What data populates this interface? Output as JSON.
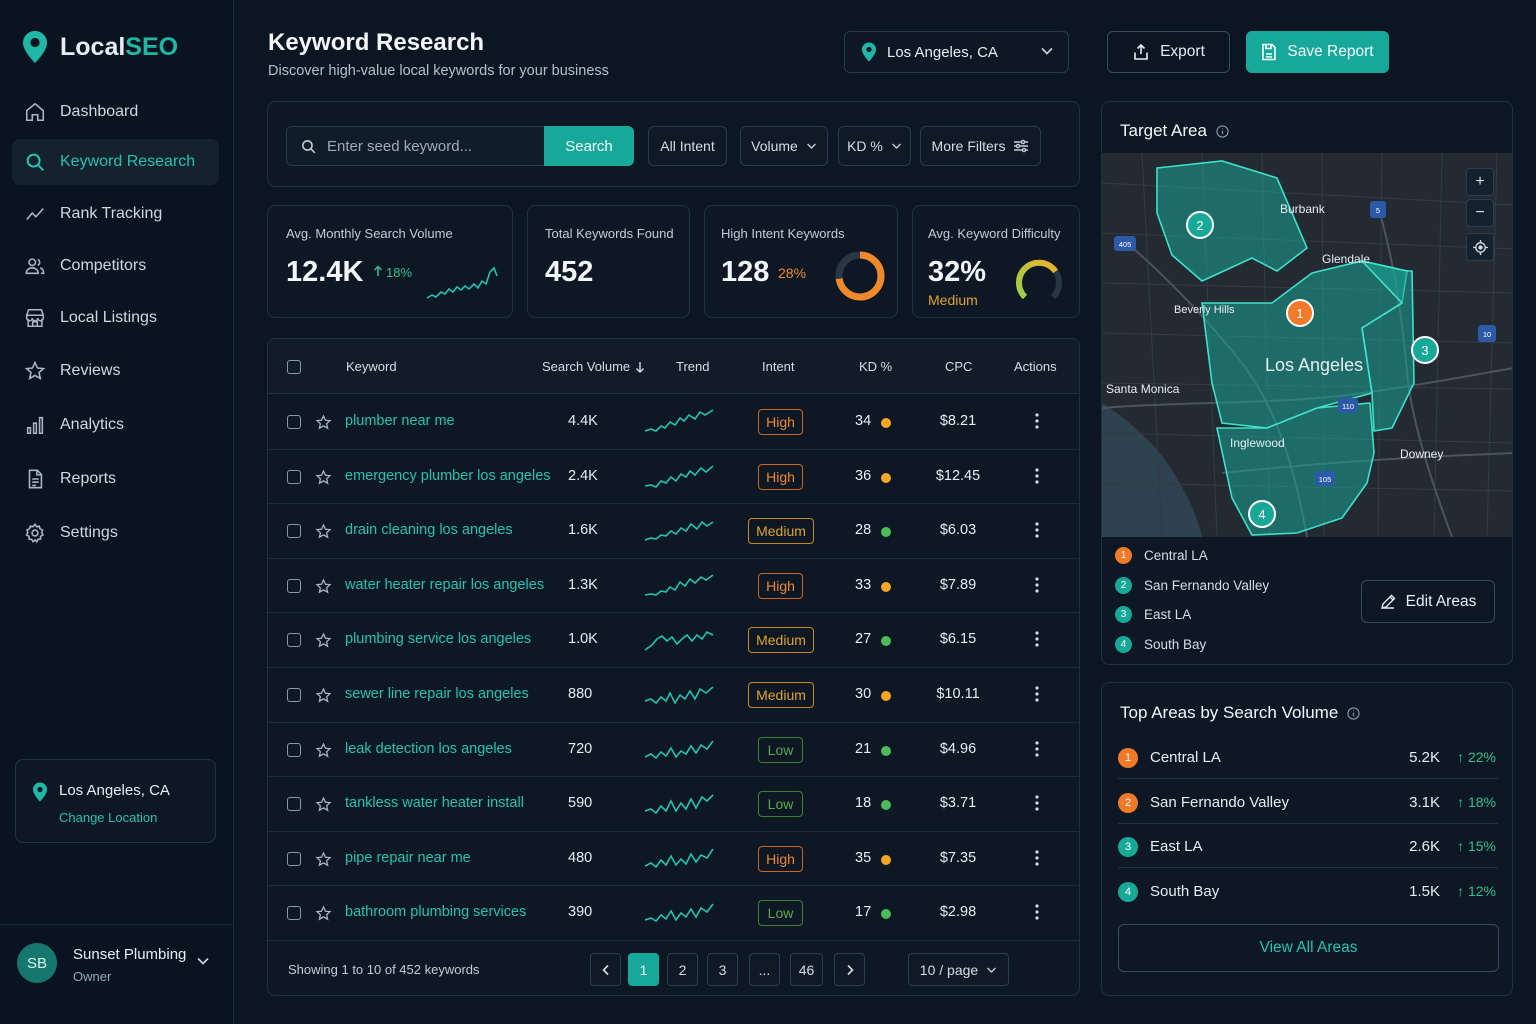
{
  "app": {
    "logo_local": "Local",
    "logo_seo": "SEO"
  },
  "sidebar": {
    "items": [
      {
        "label": "Dashboard"
      },
      {
        "label": "Keyword Research"
      },
      {
        "label": "Rank Tracking"
      },
      {
        "label": "Competitors"
      },
      {
        "label": "Local Listings"
      },
      {
        "label": "Reviews"
      },
      {
        "label": "Analytics"
      },
      {
        "label": "Reports"
      },
      {
        "label": "Settings"
      }
    ],
    "location": {
      "title": "Los Angeles, CA",
      "link": "Change Location"
    },
    "user": {
      "initials": "SB",
      "name": "Sunset Plumbing",
      "role": "Owner"
    }
  },
  "header": {
    "title": "Keyword Research",
    "subtitle": "Discover high-value local keywords for your business",
    "location": "Los Angeles, CA",
    "export": "Export",
    "save": "Save Report"
  },
  "search": {
    "placeholder": "Enter seed keyword...",
    "button": "Search",
    "filters": [
      "All Intent",
      "Volume",
      "KD %",
      "More Filters"
    ]
  },
  "kpis": {
    "volume": {
      "label": "Avg. Monthly Search Volume",
      "value": "12.4K",
      "change": "18%"
    },
    "total": {
      "label": "Total Keywords Found",
      "value": "452"
    },
    "intent": {
      "label": "High Intent Keywords",
      "value": "128",
      "pct": "28%",
      "fraction": 0.28
    },
    "difficulty": {
      "label": "Avg. Keyword Difficulty",
      "value": "32%",
      "level": "Medium",
      "fraction": 0.32
    }
  },
  "table": {
    "headers": {
      "keyword": "Keyword",
      "volume": "Search Volume",
      "trend": "Trend",
      "intent": "Intent",
      "kd": "KD %",
      "cpc": "CPC",
      "actions": "Actions"
    },
    "rows": [
      {
        "keyword": "plumber near me",
        "volume": "4.4K",
        "intent": "High",
        "kd": "34",
        "cpc": "$8.21"
      },
      {
        "keyword": "emergency plumber los angeles",
        "volume": "2.4K",
        "intent": "High",
        "kd": "36",
        "cpc": "$12.45"
      },
      {
        "keyword": "drain cleaning los angeles",
        "volume": "1.6K",
        "intent": "Medium",
        "kd": "28",
        "cpc": "$6.03"
      },
      {
        "keyword": "water heater repair los angeles",
        "volume": "1.3K",
        "intent": "High",
        "kd": "33",
        "cpc": "$7.89"
      },
      {
        "keyword": "plumbing service los angeles",
        "volume": "1.0K",
        "intent": "Medium",
        "kd": "27",
        "cpc": "$6.15"
      },
      {
        "keyword": "sewer line repair los angeles",
        "volume": "880",
        "intent": "Medium",
        "kd": "30",
        "cpc": "$10.11"
      },
      {
        "keyword": "leak detection los angeles",
        "volume": "720",
        "intent": "Low",
        "kd": "21",
        "cpc": "$4.96"
      },
      {
        "keyword": "tankless water heater install",
        "volume": "590",
        "intent": "Low",
        "kd": "18",
        "cpc": "$3.71"
      },
      {
        "keyword": "pipe repair near me",
        "volume": "480",
        "intent": "High",
        "kd": "35",
        "cpc": "$7.35"
      },
      {
        "keyword": "bathroom plumbing services",
        "volume": "390",
        "intent": "Low",
        "kd": "17",
        "cpc": "$2.98"
      }
    ],
    "footer": "Showing 1 to 10 of 452 keywords",
    "pages": [
      "1",
      "2",
      "3",
      "...",
      "46"
    ],
    "per_page": "10 / page"
  },
  "map": {
    "title": "Target Area",
    "labels": {
      "burbank": "Burbank",
      "glendale": "Glendale",
      "beverly": "Beverly Hills",
      "la": "Los Angeles",
      "santa": "Santa Monica",
      "inglewood": "Inglewood",
      "downey": "Downey"
    },
    "shields": {
      "s405": "405",
      "s5": "5",
      "s10": "10",
      "s110": "110",
      "s105": "105"
    },
    "markers": [
      "1",
      "2",
      "3",
      "4"
    ],
    "legend": [
      "Central LA",
      "San Fernando Valley",
      "East LA",
      "South Bay"
    ],
    "edit": "Edit Areas"
  },
  "top_areas": {
    "title": "Top Areas by Search Volume",
    "rows": [
      {
        "num": "1",
        "name": "Central LA",
        "volume": "5.2K",
        "change": "22%"
      },
      {
        "num": "2",
        "name": "San Fernando Valley",
        "volume": "3.1K",
        "change": "18%"
      },
      {
        "num": "3",
        "name": "East LA",
        "volume": "2.6K",
        "change": "15%"
      },
      {
        "num": "4",
        "name": "South Bay",
        "volume": "1.5K",
        "change": "12%"
      }
    ],
    "view_all": "View All Areas"
  },
  "colors": {
    "accent": "#17a899",
    "teal_text": "#22c3b0",
    "orange": "#f0892b",
    "green": "#4cbb5a",
    "high": "#f0892b",
    "medium": "#e0a32a",
    "low": "#5aa84a"
  }
}
